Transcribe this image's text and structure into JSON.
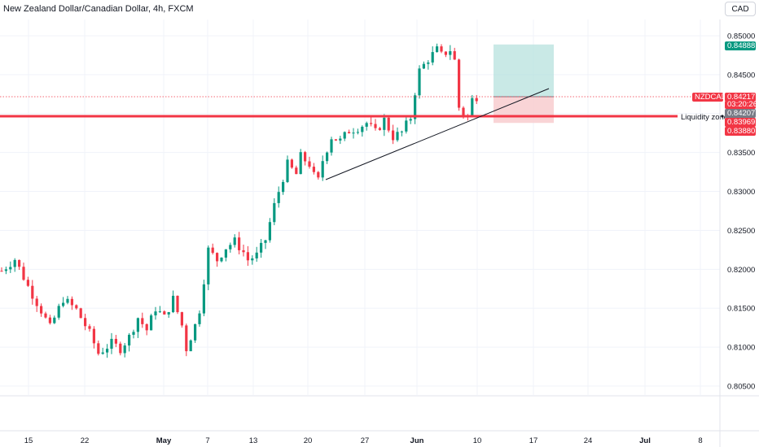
{
  "header": {
    "title": "New Zealand Dollar/Canadian Dollar, 4h, FXCM",
    "currency_button": "CAD"
  },
  "colors": {
    "up": "#089981",
    "down": "#f23645",
    "zone_line": "#f23645",
    "target_fill": "#b2dfdb",
    "stop_fill": "#f8c9cc",
    "trendline": "#131722"
  },
  "chart_data": {
    "type": "candlestick",
    "symbol": "NZDCAD",
    "timeframe": "4h",
    "source": "FXCM",
    "price_axis": {
      "ylim": [
        0.804,
        0.8522
      ],
      "ticks": [
        "0.85000",
        "0.84500",
        "0.84000",
        "0.83500",
        "0.83000",
        "0.82500",
        "0.82000",
        "0.81500",
        "0.81000",
        "0.80500"
      ]
    },
    "time_axis": {
      "ticks": [
        "15",
        "22",
        "May",
        "7",
        "13",
        "20",
        "27",
        "Jun",
        "10",
        "17",
        "24",
        "Jul",
        "8"
      ]
    },
    "price_path": [
      [
        0,
        0.8198
      ],
      [
        3,
        0.8213
      ],
      [
        6,
        0.8178
      ],
      [
        9,
        0.8147
      ],
      [
        11,
        0.8125
      ],
      [
        14,
        0.8162
      ],
      [
        17,
        0.8148
      ],
      [
        20,
        0.8118
      ],
      [
        22,
        0.8092
      ],
      [
        25,
        0.8105
      ],
      [
        27,
        0.8098
      ],
      [
        29,
        0.8113
      ],
      [
        31,
        0.8138
      ],
      [
        33,
        0.8122
      ],
      [
        35,
        0.815
      ],
      [
        37,
        0.8138
      ],
      [
        39,
        0.8162
      ],
      [
        41,
        0.8128
      ],
      [
        42,
        0.8098
      ],
      [
        44,
        0.8128
      ],
      [
        45,
        0.8148
      ],
      [
        47,
        0.8225
      ],
      [
        49,
        0.8212
      ],
      [
        51,
        0.8228
      ],
      [
        53,
        0.8236
      ],
      [
        55,
        0.8222
      ],
      [
        56,
        0.8212
      ],
      [
        58,
        0.8218
      ],
      [
        60,
        0.8238
      ],
      [
        62,
        0.8282
      ],
      [
        63,
        0.83
      ],
      [
        65,
        0.8335
      ],
      [
        67,
        0.8322
      ],
      [
        68,
        0.8345
      ],
      [
        70,
        0.8335
      ],
      [
        71,
        0.832
      ],
      [
        72,
        0.8314
      ],
      [
        73,
        0.834
      ],
      [
        75,
        0.837
      ],
      [
        77,
        0.8365
      ],
      [
        79,
        0.8378
      ],
      [
        81,
        0.8382
      ],
      [
        83,
        0.8388
      ],
      [
        85,
        0.8376
      ],
      [
        87,
        0.8392
      ],
      [
        89,
        0.837
      ],
      [
        91,
        0.8376
      ],
      [
        93,
        0.8395
      ],
      [
        94,
        0.8428
      ],
      [
        95,
        0.8455
      ],
      [
        97,
        0.847
      ],
      [
        99,
        0.8482
      ],
      [
        100,
        0.8475
      ],
      [
        102,
        0.8482
      ],
      [
        103,
        0.8468
      ],
      [
        104,
        0.8408
      ],
      [
        105,
        0.84
      ],
      [
        106,
        0.8395
      ],
      [
        107,
        0.8418
      ],
      [
        108,
        0.8422
      ]
    ],
    "position": {
      "entry": 0.84217,
      "target": 0.84888,
      "stop": 0.8388
    },
    "horizontal_line": {
      "price": 0.84,
      "label": "Liquidity zone"
    },
    "trendline": {
      "from": [
        64,
        0.8315
      ],
      "to": [
        120,
        0.8434
      ]
    },
    "price_labels": {
      "target": "0.84888",
      "symbol": "NZDCAD",
      "last": "0.84217",
      "countdown": "03:20:26",
      "cursor": "0.84207",
      "zone": "0.83969",
      "stop": "0.83880"
    }
  }
}
